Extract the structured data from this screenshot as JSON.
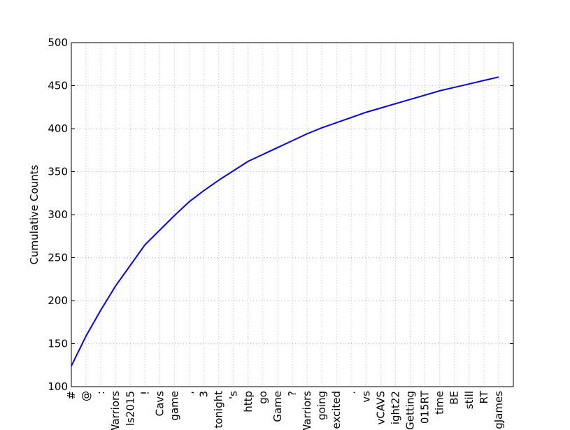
{
  "chart_data": {
    "type": "line",
    "ylabel": "Cumulative Counts",
    "categories": [
      "#",
      "@",
      ":",
      "Warriors",
      "ls2015",
      "!",
      "Cavs",
      "game",
      ",",
      "3",
      "tonight",
      "'s",
      "http",
      "go",
      "Game",
      "?",
      "Warriors",
      "going",
      "excited",
      ".",
      "vs",
      "vCAVS",
      "ight22",
      "Getting",
      "015RT",
      "time",
      "BE",
      "still",
      "RT",
      "gJames"
    ],
    "values": [
      124,
      159,
      189,
      217,
      241,
      265,
      282,
      299,
      315,
      328,
      340,
      351,
      362,
      370,
      378,
      386,
      394,
      401,
      407,
      413,
      419,
      424,
      429,
      434,
      439,
      444,
      448,
      452,
      456,
      460
    ],
    "color": "#0000ff",
    "ylim": [
      100,
      500
    ],
    "yticks": [
      100,
      150,
      200,
      250,
      300,
      350,
      400,
      450,
      500
    ],
    "grid": true
  }
}
